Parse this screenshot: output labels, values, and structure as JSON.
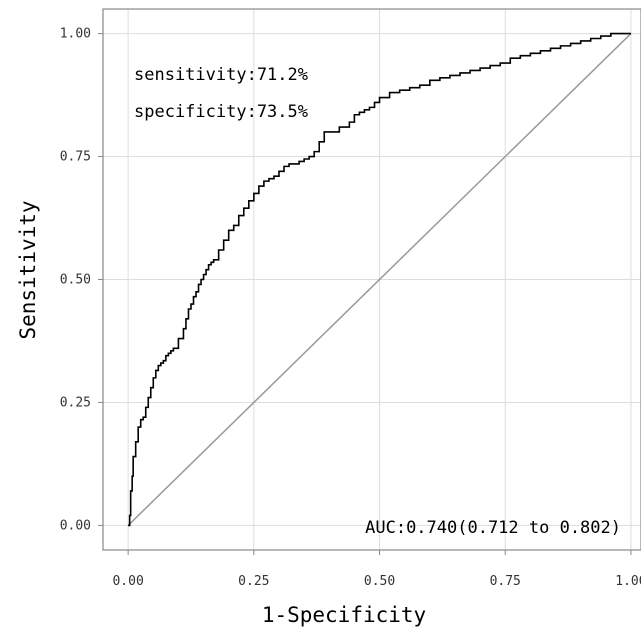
{
  "chart_data": {
    "type": "line",
    "title": "",
    "xlabel": "1-Specificity",
    "ylabel": "Sensitivity",
    "xlim": [
      -0.05,
      1.02
    ],
    "ylim": [
      -0.05,
      1.05
    ],
    "grid": true,
    "x_ticks": [
      "0.00",
      "0.25",
      "0.50",
      "0.75",
      "1.00"
    ],
    "y_ticks": [
      "0.00",
      "0.25",
      "0.50",
      "0.75",
      "1.00"
    ],
    "annotations": {
      "sensitivity": "sensitivity:71.2%",
      "specificity": "specificity:73.5%",
      "auc": "AUC:0.740(0.712 to 0.802)"
    },
    "colors": {
      "roc": "#000000",
      "reference": "#999999",
      "grid": "#dddddd",
      "frame": "#888888"
    },
    "series": [
      {
        "x": [
          0,
          0.003,
          0.005,
          0.008,
          0.01,
          0.015,
          0.02,
          0.025,
          0.03,
          0.035,
          0.04,
          0.045,
          0.05,
          0.055,
          0.06,
          0.065,
          0.07,
          0.075,
          0.08,
          0.085,
          0.09,
          0.1,
          0.11,
          0.115,
          0.12,
          0.125,
          0.13,
          0.135,
          0.14,
          0.145,
          0.15,
          0.155,
          0.16,
          0.165,
          0.17,
          0.18,
          0.19,
          0.2,
          0.21,
          0.22,
          0.23,
          0.24,
          0.25,
          0.26,
          0.27,
          0.28,
          0.29,
          0.3,
          0.31,
          0.32,
          0.33,
          0.34,
          0.35,
          0.36,
          0.37,
          0.38,
          0.39,
          0.4,
          0.42,
          0.44,
          0.45,
          0.46,
          0.47,
          0.48,
          0.49,
          0.5,
          0.52,
          0.54,
          0.56,
          0.58,
          0.6,
          0.62,
          0.64,
          0.66,
          0.68,
          0.7,
          0.72,
          0.74,
          0.76,
          0.78,
          0.8,
          0.82,
          0.84,
          0.86,
          0.88,
          0.9,
          0.92,
          0.94,
          0.96,
          0.98,
          1.0
        ],
        "y": [
          0,
          0.02,
          0.07,
          0.1,
          0.14,
          0.17,
          0.2,
          0.215,
          0.22,
          0.24,
          0.26,
          0.28,
          0.3,
          0.315,
          0.325,
          0.33,
          0.335,
          0.345,
          0.35,
          0.355,
          0.36,
          0.38,
          0.4,
          0.42,
          0.44,
          0.45,
          0.465,
          0.475,
          0.49,
          0.5,
          0.51,
          0.52,
          0.53,
          0.535,
          0.54,
          0.56,
          0.58,
          0.6,
          0.61,
          0.63,
          0.645,
          0.66,
          0.675,
          0.69,
          0.7,
          0.705,
          0.71,
          0.72,
          0.73,
          0.735,
          0.735,
          0.74,
          0.745,
          0.75,
          0.76,
          0.78,
          0.8,
          0.8,
          0.81,
          0.82,
          0.835,
          0.84,
          0.845,
          0.85,
          0.86,
          0.87,
          0.88,
          0.885,
          0.89,
          0.895,
          0.905,
          0.91,
          0.915,
          0.92,
          0.925,
          0.93,
          0.935,
          0.94,
          0.95,
          0.955,
          0.96,
          0.965,
          0.97,
          0.975,
          0.98,
          0.985,
          0.99,
          0.995,
          1.0,
          1.0,
          1.0
        ]
      },
      {
        "x": [
          0,
          1
        ],
        "y": [
          0,
          1
        ]
      }
    ]
  }
}
